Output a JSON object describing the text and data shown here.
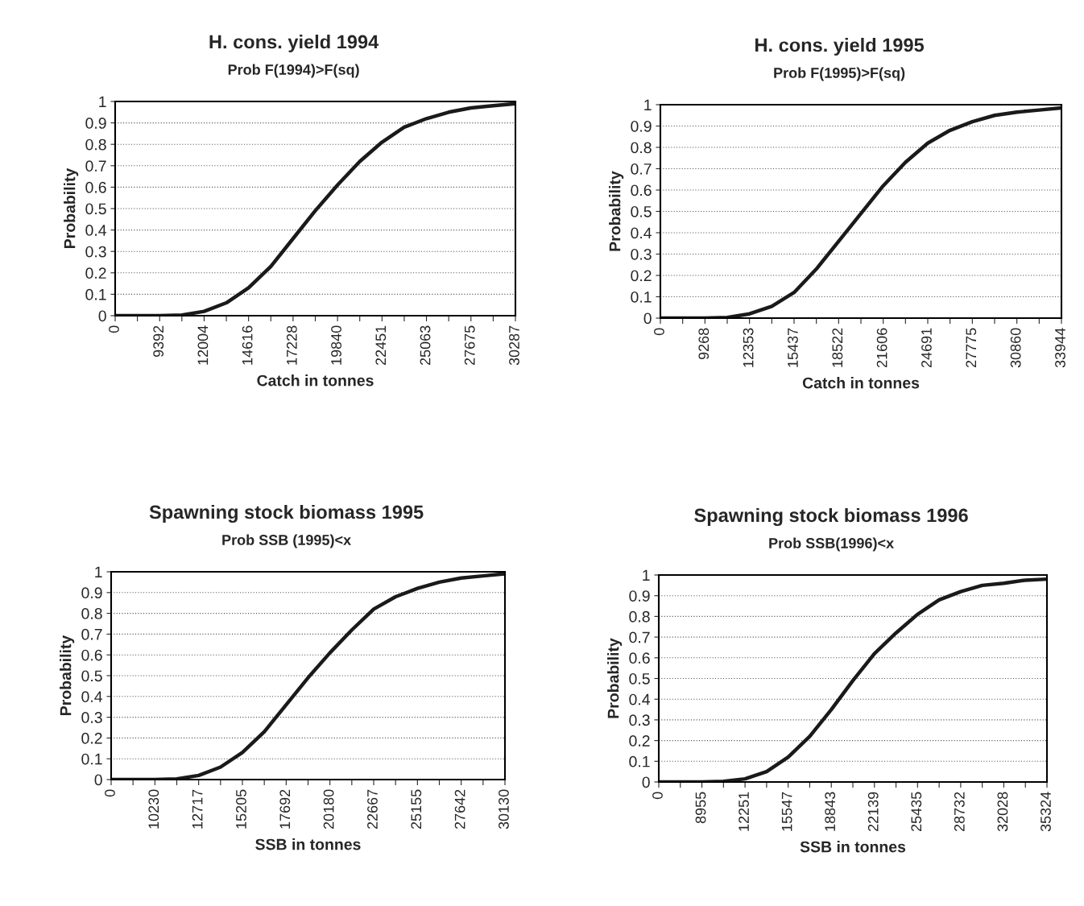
{
  "chart_data": [
    {
      "type": "line",
      "title": "H. cons. yield 1994",
      "subtitle": "Prob F(1994)>F(sq)",
      "xlabel": "Catch in tonnes",
      "ylabel": "Probability",
      "categories": [
        "0",
        null,
        "9392",
        null,
        "12004",
        null,
        "14616",
        null,
        "17228",
        null,
        "19840",
        null,
        "22451",
        null,
        "25063",
        null,
        "27675",
        null,
        "30287"
      ],
      "series": [
        {
          "color": "#1a1a1a",
          "values": [
            0,
            0,
            0,
            0.003,
            0.02,
            0.06,
            0.13,
            0.23,
            0.36,
            0.49,
            0.61,
            0.72,
            0.81,
            0.88,
            0.92,
            0.95,
            0.97,
            0.98,
            0.99
          ]
        }
      ],
      "ylim": [
        0,
        1
      ],
      "yticks": [
        0,
        0.1,
        0.2,
        0.3,
        0.4,
        0.5,
        0.6,
        0.7,
        0.8,
        0.9,
        1
      ],
      "grid": "y",
      "line_style": "solid",
      "marker": "none"
    },
    {
      "type": "line",
      "title": "H. cons. yield 1995",
      "subtitle": "Prob F(1995)>F(sq)",
      "xlabel": "Catch in tonnes",
      "ylabel": "Probability",
      "categories": [
        "0",
        null,
        "9268",
        null,
        "12353",
        null,
        "15437",
        null,
        "18522",
        null,
        "21606",
        null,
        "24691",
        null,
        "27775",
        null,
        "30860",
        null,
        "33944"
      ],
      "series": [
        {
          "color": "#1a1a1a",
          "values": [
            0,
            0,
            0,
            0.003,
            0.02,
            0.055,
            0.12,
            0.23,
            0.36,
            0.49,
            0.62,
            0.73,
            0.82,
            0.88,
            0.92,
            0.95,
            0.965,
            0.975,
            0.985
          ]
        }
      ],
      "ylim": [
        0,
        1
      ],
      "yticks": [
        0,
        0.1,
        0.2,
        0.3,
        0.4,
        0.5,
        0.6,
        0.7,
        0.8,
        0.9,
        1
      ],
      "grid": "y",
      "line_style": "solid",
      "marker": "none"
    },
    {
      "type": "line",
      "title": "Spawning stock biomass 1995",
      "subtitle": "Prob SSB (1995)<x",
      "xlabel": "SSB in tonnes",
      "ylabel": "Probability",
      "categories": [
        "0",
        null,
        "10230",
        null,
        "12717",
        null,
        "15205",
        null,
        "17692",
        null,
        "20180",
        null,
        "22667",
        null,
        "25155",
        null,
        "27642",
        null,
        "30130"
      ],
      "series": [
        {
          "color": "#1a1a1a",
          "values": [
            0,
            0,
            0,
            0.003,
            0.02,
            0.06,
            0.13,
            0.23,
            0.36,
            0.49,
            0.61,
            0.72,
            0.82,
            0.88,
            0.92,
            0.95,
            0.97,
            0.98,
            0.99
          ]
        }
      ],
      "ylim": [
        0,
        1
      ],
      "yticks": [
        0,
        0.1,
        0.2,
        0.3,
        0.4,
        0.5,
        0.6,
        0.7,
        0.8,
        0.9,
        1
      ],
      "grid": "y",
      "line_style": "solid",
      "marker": "none"
    },
    {
      "type": "line",
      "title": "Spawning stock biomass 1996",
      "subtitle": "Prob SSB(1996)<x",
      "xlabel": "SSB in tonnes",
      "ylabel": "Probability",
      "categories": [
        "0",
        null,
        "8955",
        null,
        "12251",
        null,
        "15547",
        null,
        "18843",
        null,
        "22139",
        null,
        "25435",
        null,
        "28732",
        null,
        "32028",
        null,
        "35324"
      ],
      "series": [
        {
          "color": "#1a1a1a",
          "values": [
            0,
            0,
            0,
            0.003,
            0.015,
            0.05,
            0.12,
            0.22,
            0.35,
            0.49,
            0.62,
            0.72,
            0.81,
            0.88,
            0.92,
            0.95,
            0.96,
            0.975,
            0.98
          ]
        }
      ],
      "ylim": [
        0,
        1
      ],
      "yticks": [
        0,
        0.1,
        0.2,
        0.3,
        0.4,
        0.5,
        0.6,
        0.7,
        0.8,
        0.9,
        1
      ],
      "grid": "y",
      "line_style": "solid",
      "marker": "none"
    }
  ]
}
